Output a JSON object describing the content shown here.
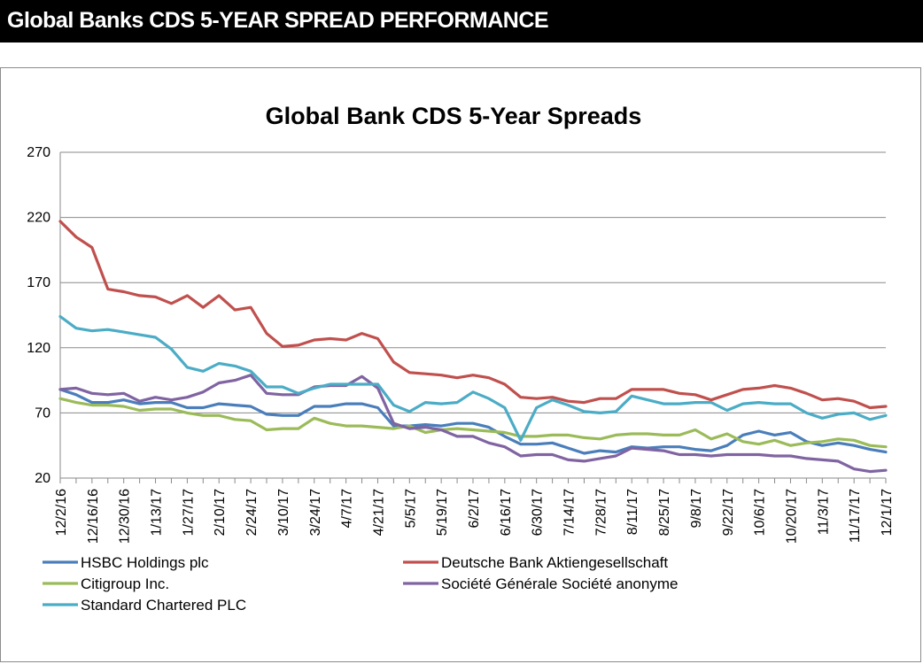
{
  "header": {
    "title": "Global Banks CDS 5-YEAR SPREAD PERFORMANCE"
  },
  "chart_data": {
    "type": "line",
    "title": "Global Bank CDS 5-Year Spreads",
    "xlabel": "",
    "ylabel": "",
    "ylim": [
      20,
      270
    ],
    "yticks": [
      20,
      70,
      120,
      170,
      220,
      270
    ],
    "grid": true,
    "legend_position": "bottom",
    "x": [
      "12/2/16",
      "12/9/16",
      "12/16/16",
      "12/23/16",
      "12/30/16",
      "1/6/17",
      "1/13/17",
      "1/20/17",
      "1/27/17",
      "2/3/17",
      "2/10/17",
      "2/17/17",
      "2/24/17",
      "3/3/17",
      "3/10/17",
      "3/17/17",
      "3/24/17",
      "3/31/17",
      "4/7/17",
      "4/14/17",
      "4/21/17",
      "4/28/17",
      "5/5/17",
      "5/12/17",
      "5/19/17",
      "5/26/17",
      "6/2/17",
      "6/9/17",
      "6/16/17",
      "6/23/17",
      "6/30/17",
      "7/7/17",
      "7/14/17",
      "7/21/17",
      "7/28/17",
      "8/4/17",
      "8/11/17",
      "8/18/17",
      "8/25/17",
      "9/1/17",
      "9/8/17",
      "9/15/17",
      "9/22/17",
      "9/29/17",
      "10/6/17",
      "10/13/17",
      "10/20/17",
      "10/27/17",
      "11/3/17",
      "11/10/17",
      "11/17/17",
      "11/24/17",
      "12/1/17"
    ],
    "x_tick_labels": [
      "12/2/16",
      "12/16/16",
      "12/30/16",
      "1/13/17",
      "1/27/17",
      "2/10/17",
      "2/24/17",
      "3/10/17",
      "3/24/17",
      "4/7/17",
      "4/21/17",
      "5/5/17",
      "5/19/17",
      "6/2/17",
      "6/16/17",
      "6/30/17",
      "7/14/17",
      "7/28/17",
      "8/11/17",
      "8/25/17",
      "9/8/17",
      "9/22/17",
      "10/6/17",
      "10/20/17",
      "11/3/17",
      "11/17/17",
      "12/1/17"
    ],
    "series": [
      {
        "name": "HSBC Holdings plc",
        "color": "#4a7ebb",
        "values": [
          88,
          84,
          78,
          78,
          80,
          77,
          78,
          78,
          74,
          74,
          77,
          76,
          75,
          69,
          68,
          68,
          75,
          75,
          77,
          77,
          74,
          60,
          60,
          61,
          60,
          62,
          62,
          59,
          52,
          46,
          46,
          47,
          43,
          39,
          41,
          40,
          44,
          43,
          44,
          44,
          42,
          41,
          45,
          53,
          56,
          53,
          55,
          48,
          45,
          47,
          45,
          42,
          40
        ]
      },
      {
        "name": "Deutsche Bank Aktiengesellschaft",
        "color": "#c0504d",
        "values": [
          217,
          205,
          197,
          165,
          163,
          160,
          159,
          154,
          160,
          151,
          160,
          149,
          151,
          131,
          121,
          122,
          126,
          127,
          126,
          131,
          127,
          109,
          101,
          100,
          99,
          97,
          99,
          97,
          92,
          82,
          81,
          82,
          79,
          78,
          81,
          81,
          88,
          88,
          88,
          85,
          84,
          80,
          84,
          88,
          89,
          91,
          89,
          85,
          80,
          81,
          79,
          74,
          75
        ]
      },
      {
        "name": "Citigroup Inc.",
        "color": "#9bbb59",
        "values": [
          81,
          78,
          76,
          76,
          75,
          72,
          73,
          73,
          70,
          68,
          68,
          65,
          64,
          57,
          58,
          58,
          66,
          62,
          60,
          60,
          59,
          58,
          60,
          55,
          57,
          58,
          57,
          56,
          55,
          52,
          52,
          53,
          53,
          51,
          50,
          53,
          54,
          54,
          53,
          53,
          57,
          50,
          54,
          48,
          46,
          49,
          45,
          47,
          48,
          50,
          49,
          45,
          44
        ]
      },
      {
        "name": "Société Générale Société anonyme",
        "color": "#8064a2",
        "values": [
          88,
          89,
          85,
          84,
          85,
          79,
          82,
          80,
          82,
          86,
          93,
          95,
          99,
          85,
          84,
          84,
          90,
          91,
          91,
          98,
          89,
          62,
          58,
          59,
          57,
          52,
          52,
          47,
          44,
          37,
          38,
          38,
          34,
          33,
          35,
          37,
          43,
          42,
          41,
          38,
          38,
          37,
          38,
          38,
          38,
          37,
          37,
          35,
          34,
          33,
          27,
          25,
          26
        ]
      },
      {
        "name": "Standard Chartered PLC",
        "color": "#4bacc6",
        "values": [
          144,
          135,
          133,
          134,
          132,
          130,
          128,
          119,
          105,
          102,
          108,
          106,
          102,
          90,
          90,
          85,
          89,
          92,
          92,
          92,
          92,
          76,
          71,
          78,
          77,
          78,
          86,
          81,
          74,
          49,
          74,
          80,
          76,
          71,
          70,
          71,
          83,
          80,
          77,
          77,
          78,
          78,
          72,
          77,
          78,
          77,
          77,
          70,
          66,
          69,
          70,
          65,
          68
        ]
      }
    ]
  }
}
